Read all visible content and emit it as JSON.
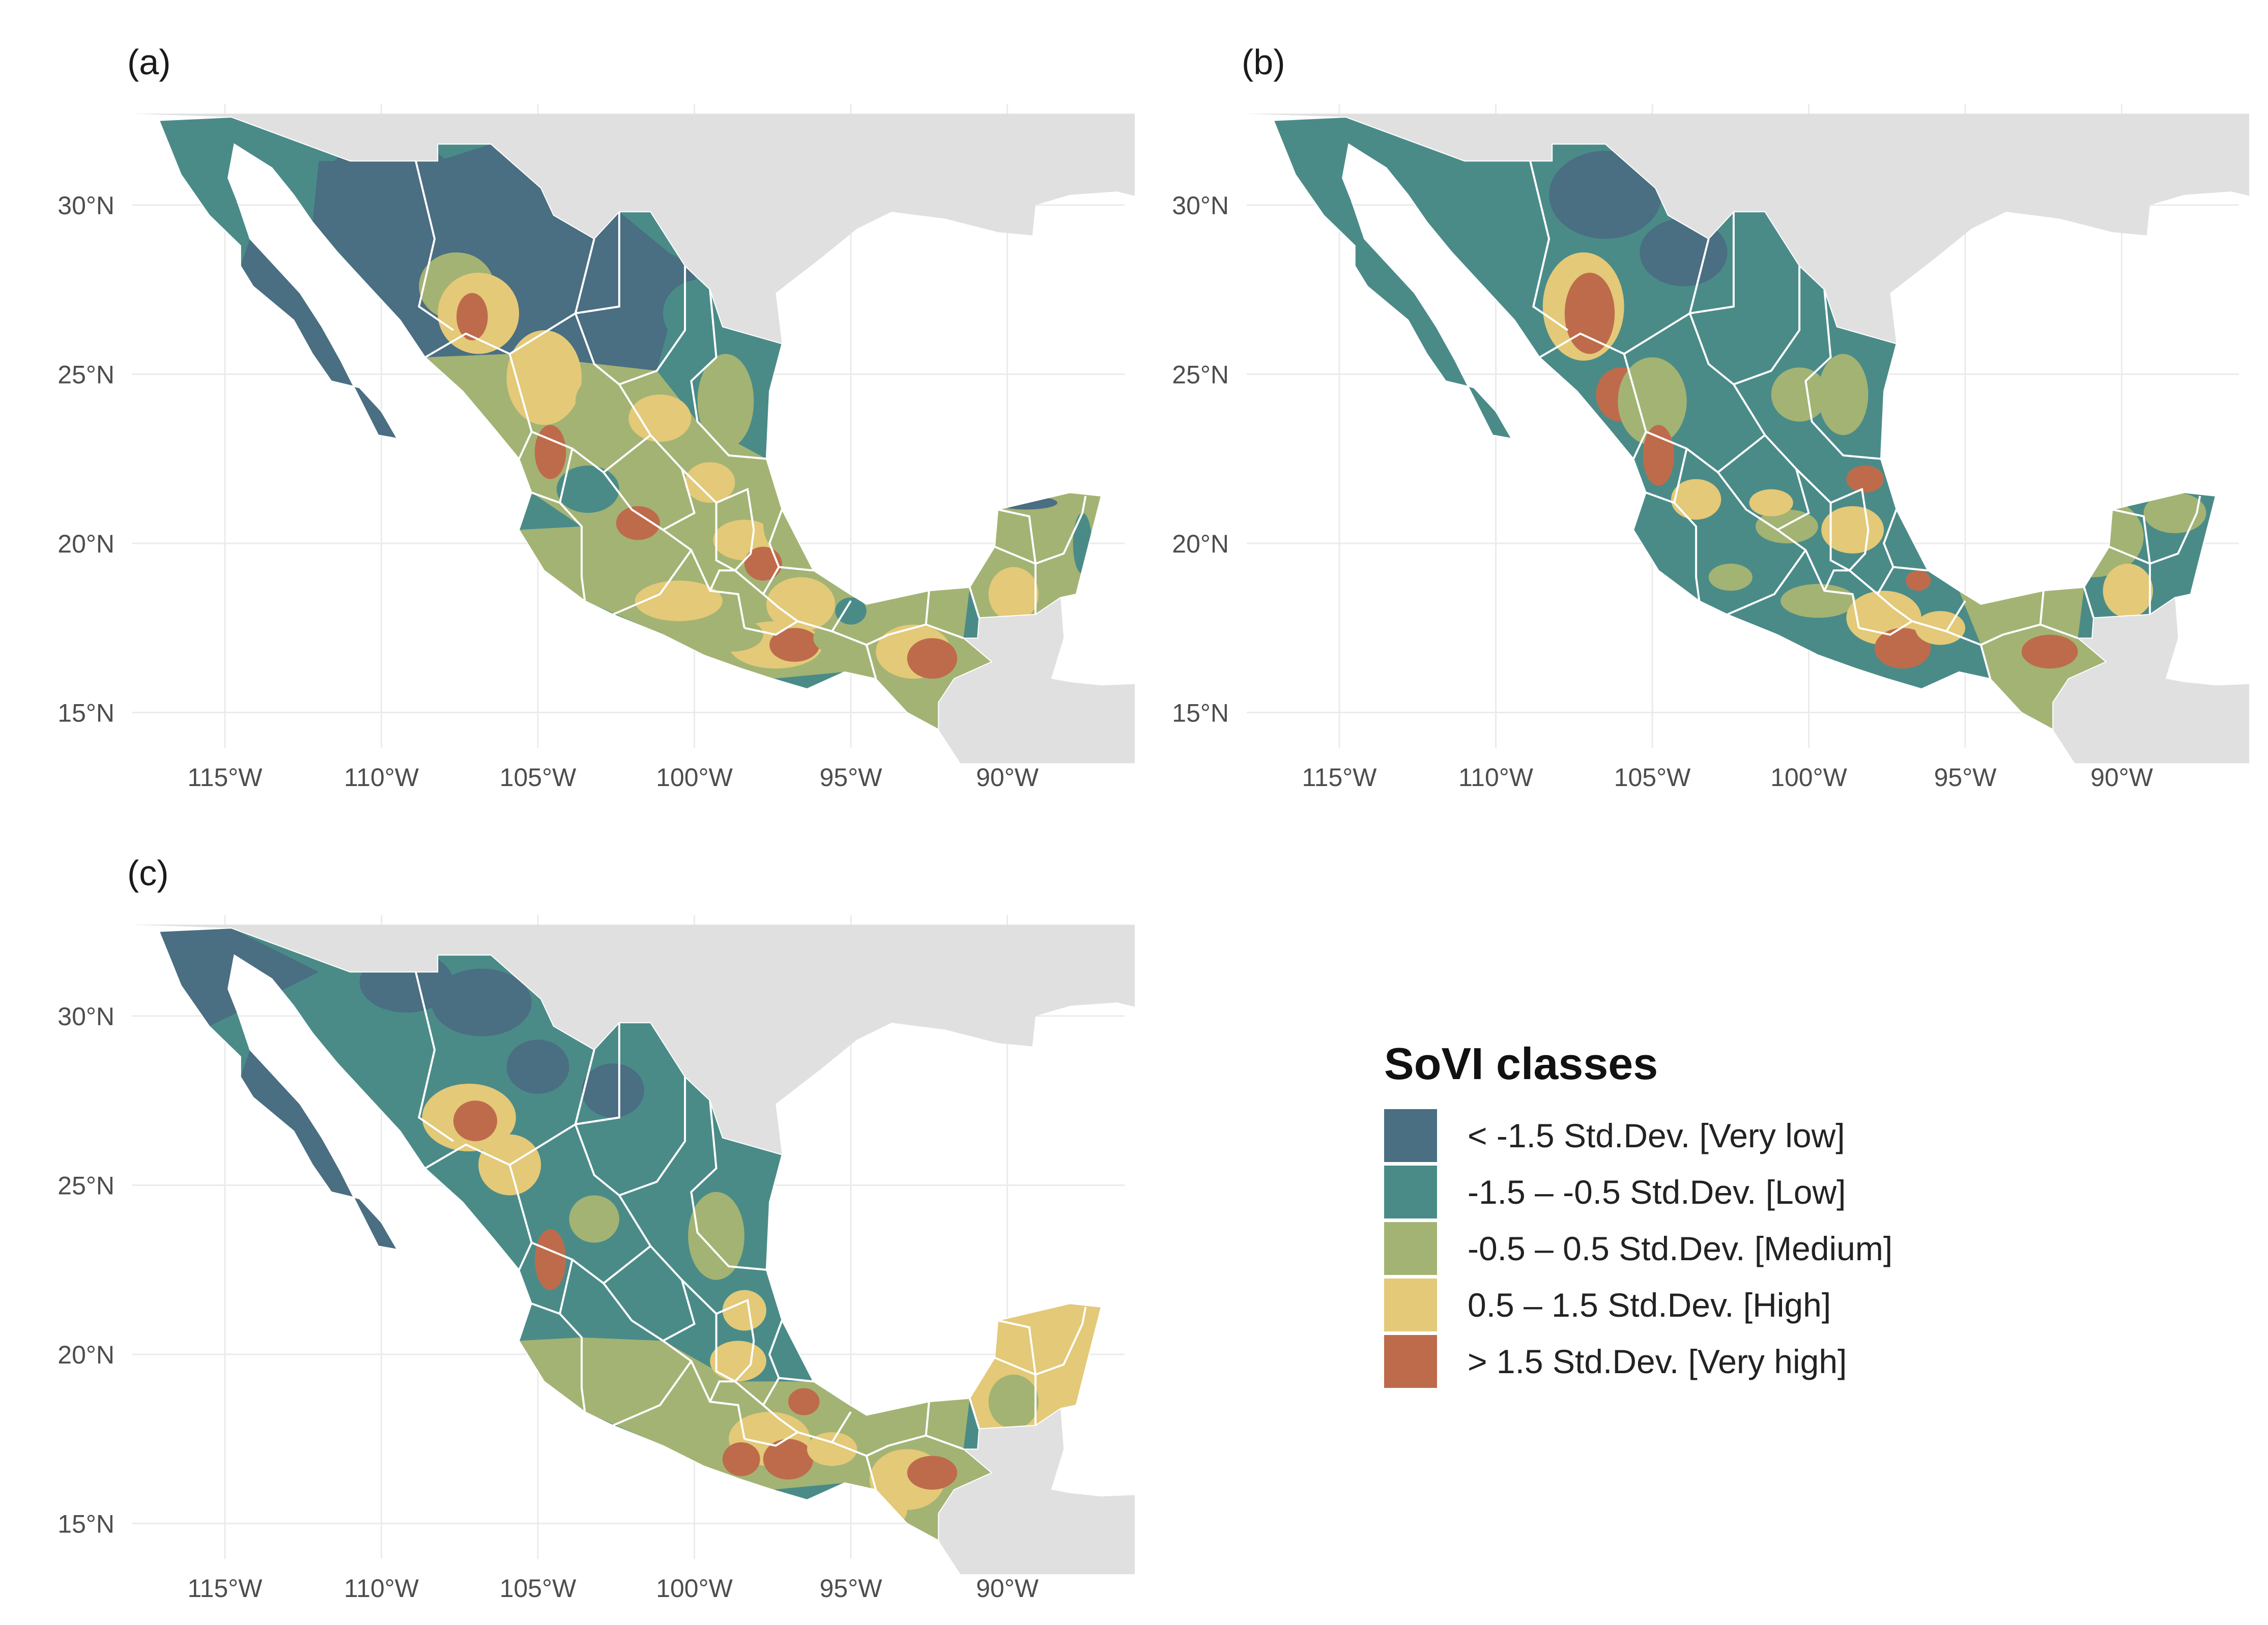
{
  "panels": [
    {
      "tag": "(a)",
      "variant": "a"
    },
    {
      "tag": "(b)",
      "variant": "b"
    },
    {
      "tag": "(c)",
      "variant": "c"
    }
  ],
  "axis_labels": {
    "lat": [
      "30°N",
      "25°N",
      "20°N",
      "15°N"
    ],
    "lon": [
      "115°W",
      "110°W",
      "105°W",
      "100°W",
      "95°W",
      "90°W"
    ]
  },
  "legend": {
    "title": "SoVI classes",
    "items": [
      {
        "label": "< -1.5 Std.Dev. [Very low]",
        "color": "#4a6e82"
      },
      {
        "label": "-1.5 – -0.5 Std.Dev. [Low]",
        "color": "#4a8b88"
      },
      {
        "label": "-0.5 – 0.5 Std.Dev. [Medium]",
        "color": "#a3b374"
      },
      {
        "label": "0.5 – 1.5 Std.Dev. [High]",
        "color": "#e3c978"
      },
      {
        "label": "> 1.5 Std.Dev. [Very high]",
        "color": "#be6b4b"
      }
    ]
  },
  "colors": {
    "land_other": "#e0e0e0",
    "grid": "#ebebeb",
    "state_border": "#ffffff",
    "text": "#4d4d4d"
  }
}
